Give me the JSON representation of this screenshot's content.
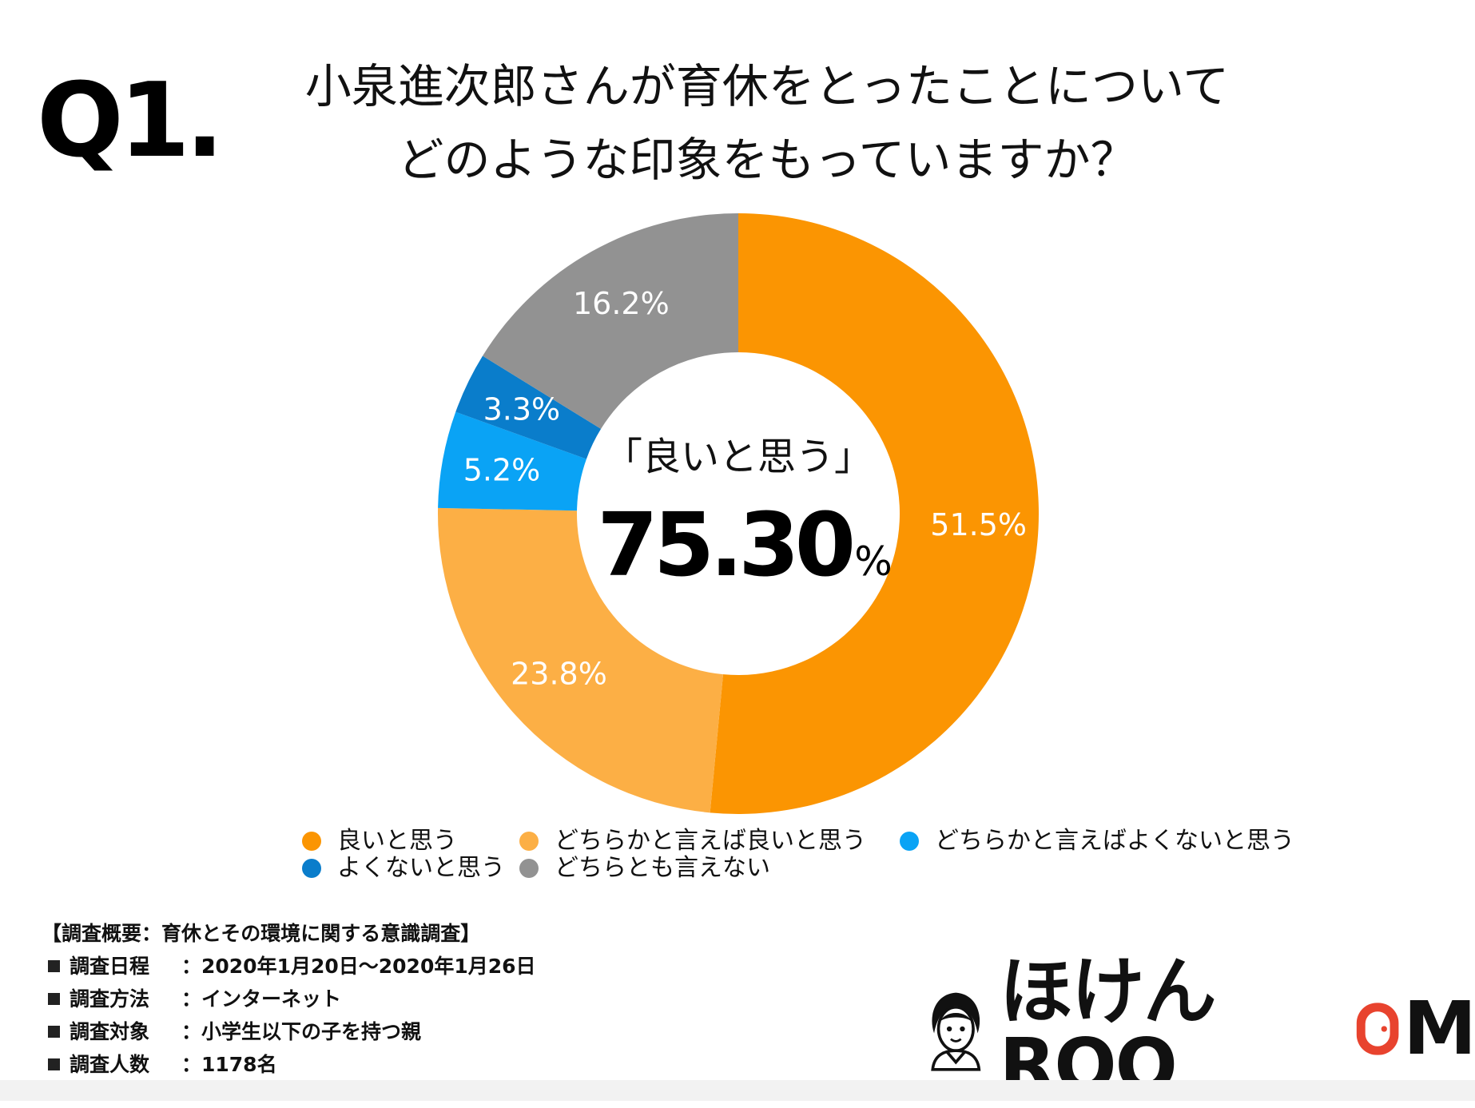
{
  "header": {
    "q_label": "Q1.",
    "title_line1": "小泉進次郎さんが育休をとったことについて",
    "title_line2": "どのような印象をもっていますか？"
  },
  "center": {
    "label": "「良いと思う」",
    "value": "75.30",
    "unit": "%"
  },
  "chart_data": {
    "type": "pie",
    "donut": true,
    "start": "top",
    "direction": "clockwise",
    "title": "小泉進次郎さんが育休をとったことについてどのような印象をもっていますか？",
    "slices": [
      {
        "name": "良いと思う",
        "value": 51.5,
        "label": "51.5%",
        "color": "#FB9502"
      },
      {
        "name": "どちらかと言えば良いと思う",
        "value": 23.8,
        "label": "23.8%",
        "color": "#FCAF45"
      },
      {
        "name": "どちらかと言えばよくないと思う",
        "value": 5.2,
        "label": "5.2%",
        "color": "#0AA3F5"
      },
      {
        "name": "よくないと思う",
        "value": 3.3,
        "label": "3.3%",
        "color": "#0A7DCB"
      },
      {
        "name": "どちらとも言えない",
        "value": 16.2,
        "label": "16.2%",
        "color": "#929292"
      }
    ],
    "legend_placement": "bottom"
  },
  "legend": [
    {
      "label": "良いと思う",
      "color": "#FB9502"
    },
    {
      "label": "どちらかと言えば良いと思う",
      "color": "#FCAF45"
    },
    {
      "label": "どちらかと言えばよくないと思う",
      "color": "#0AA3F5"
    },
    {
      "label": "よくないと思う",
      "color": "#0A7DCB"
    },
    {
      "label": "どちらとも言えない",
      "color": "#929292"
    }
  ],
  "survey": {
    "heading": "【調査概要：育休とその環境に関する意識調査】",
    "rows": [
      {
        "label": "調査日程",
        "value": "：2020年1月20日〜2020年1月26日"
      },
      {
        "label": "調査方法",
        "value": "：インターネット"
      },
      {
        "label": "調査対象",
        "value": "：小学生以下の子を持つ親"
      },
      {
        "label": "調査人数",
        "value": "：1178名"
      }
    ]
  },
  "logo": {
    "text_hira": "ほけん",
    "text_roo": "ROO",
    "text_m": "M",
    "accent_color": "#E8432E"
  }
}
